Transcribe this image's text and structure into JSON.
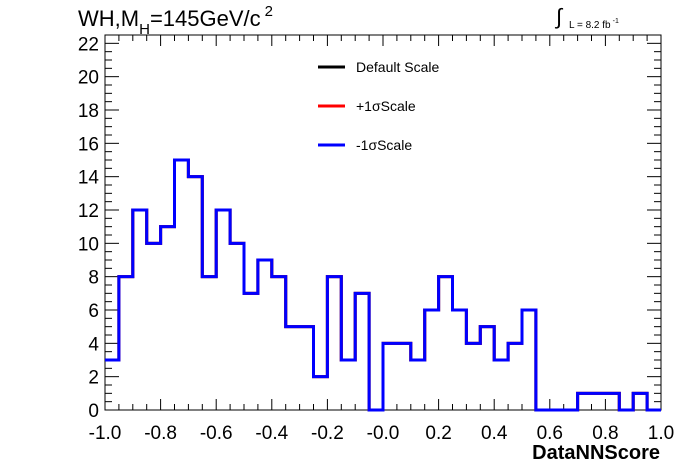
{
  "chart_data": {
    "type": "histogram",
    "title_main": "WH,M",
    "title_sub": "H",
    "title_rest": "=145GeV/c",
    "title_sup": "2",
    "lumi_text": "L = 8.2 fb",
    "lumi_exp": "-1",
    "xlabel": "DataNNScore",
    "xlim": [
      -1.0,
      1.0
    ],
    "ylim": [
      0,
      22.5
    ],
    "x_ticks": [
      "-1.0",
      "-0.8",
      "-0.6",
      "-0.4",
      "-0.2",
      "-0.0",
      "0.2",
      "0.4",
      "0.6",
      "0.8",
      "1.0"
    ],
    "y_ticks": [
      "0",
      "2",
      "4",
      "6",
      "8",
      "10",
      "12",
      "14",
      "16",
      "18",
      "20",
      "22"
    ],
    "bin_edges": [
      -1.0,
      -0.95
    ],
    "bin_width": 0.05,
    "series": [
      {
        "name": "Default Scale",
        "color": "#000000",
        "values": [
          3,
          8,
          12,
          10,
          11,
          15,
          14,
          8,
          12,
          10,
          7,
          9,
          8,
          5,
          5,
          2,
          8,
          3,
          7,
          0,
          4,
          4,
          3,
          6,
          8,
          6,
          4,
          5,
          3,
          4,
          6,
          0,
          0,
          0,
          1,
          1,
          1,
          0,
          1,
          0
        ]
      },
      {
        "name": "+1σScale",
        "color": "#ff0000",
        "values": [
          3,
          8,
          12,
          10,
          11,
          15,
          14,
          8,
          12,
          10,
          7,
          9,
          8,
          5,
          5,
          2,
          8,
          3,
          7,
          0,
          4,
          4,
          3,
          6,
          8,
          6,
          4,
          5,
          3,
          4,
          6,
          0,
          0,
          0,
          1,
          1,
          1,
          0,
          1,
          0
        ]
      },
      {
        "name": "-1σScale",
        "color": "#0000ff",
        "values": [
          3,
          8,
          12,
          10,
          11,
          15,
          14,
          8,
          12,
          10,
          7,
          9,
          8,
          5,
          5,
          2,
          8,
          3,
          7,
          0,
          4,
          4,
          3,
          6,
          8,
          6,
          4,
          5,
          3,
          4,
          6,
          0,
          0,
          0,
          1,
          1,
          1,
          0,
          1,
          0
        ]
      }
    ],
    "legend_position": "top-center",
    "grid": false
  }
}
